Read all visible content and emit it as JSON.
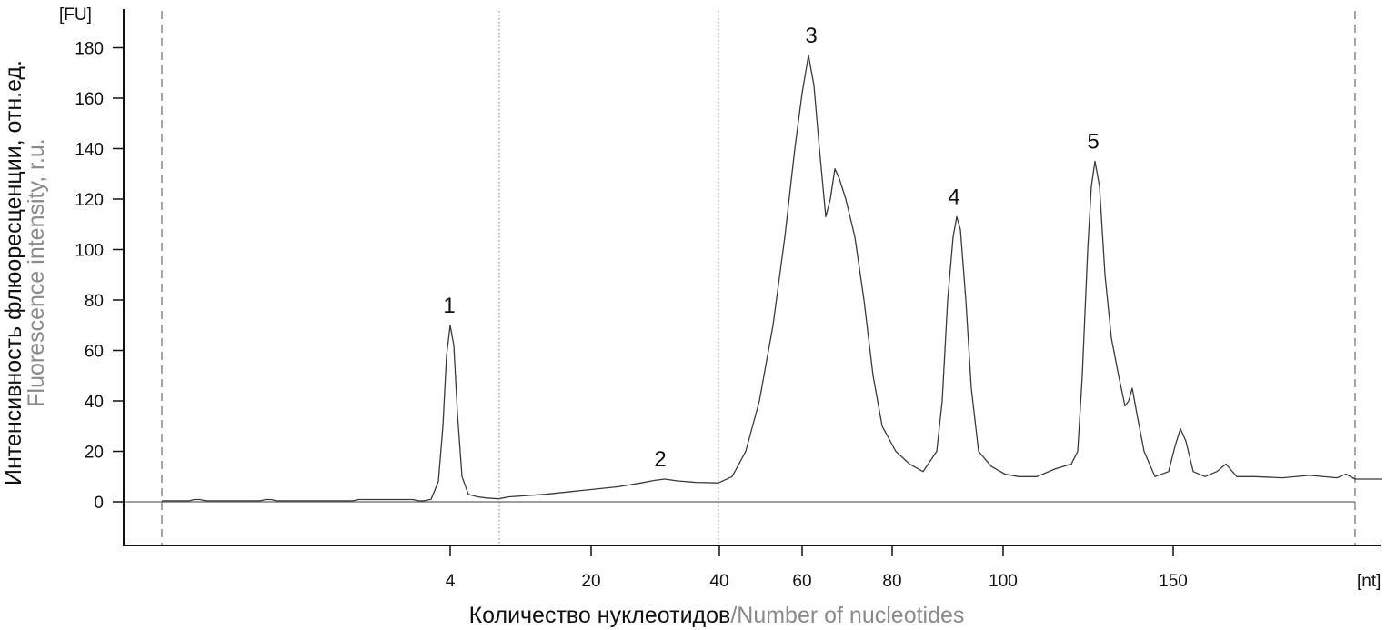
{
  "chart_data": {
    "type": "line",
    "title": "",
    "y_unit": "[FU]",
    "x_unit": "[nt]",
    "ylabel_ru": "Интенсивность флюоресценции, отн.ед.",
    "ylabel_en": "Fluorescence intensity, r.u.",
    "xlabel_ru": "Количество нуклеотидов",
    "xlabel_en": "/Number of nucleotides",
    "ylim": [
      -18,
      195
    ],
    "y_ticks": [
      0,
      20,
      40,
      60,
      80,
      100,
      120,
      140,
      160,
      180
    ],
    "x_tick_labels": [
      "4",
      "20",
      "40",
      "60",
      "80",
      "100",
      "150"
    ],
    "grid": false,
    "peaks": [
      {
        "label": "1",
        "nt": 4,
        "fu": 70
      },
      {
        "label": "2",
        "nt": 31,
        "fu": 9
      },
      {
        "label": "3",
        "nt": 62,
        "fu": 177
      },
      {
        "label": "4",
        "nt": 90,
        "fu": 113
      },
      {
        "label": "5",
        "nt": 128,
        "fu": 135
      }
    ],
    "shoulders": [
      {
        "nt": 67,
        "fu": 132
      },
      {
        "nt": 140,
        "fu": 45
      },
      {
        "nt": 153,
        "fu": 29
      },
      {
        "nt": 170,
        "fu": 15
      }
    ],
    "baseline_fu": {
      "before_peak_1": 0.5,
      "after_peak_5": 9
    }
  },
  "colors": {
    "line": "#3a3a3a",
    "axis": "#111111",
    "text": "#111111",
    "english_label": "#8a8a8a",
    "marker_lines": "#777777"
  }
}
